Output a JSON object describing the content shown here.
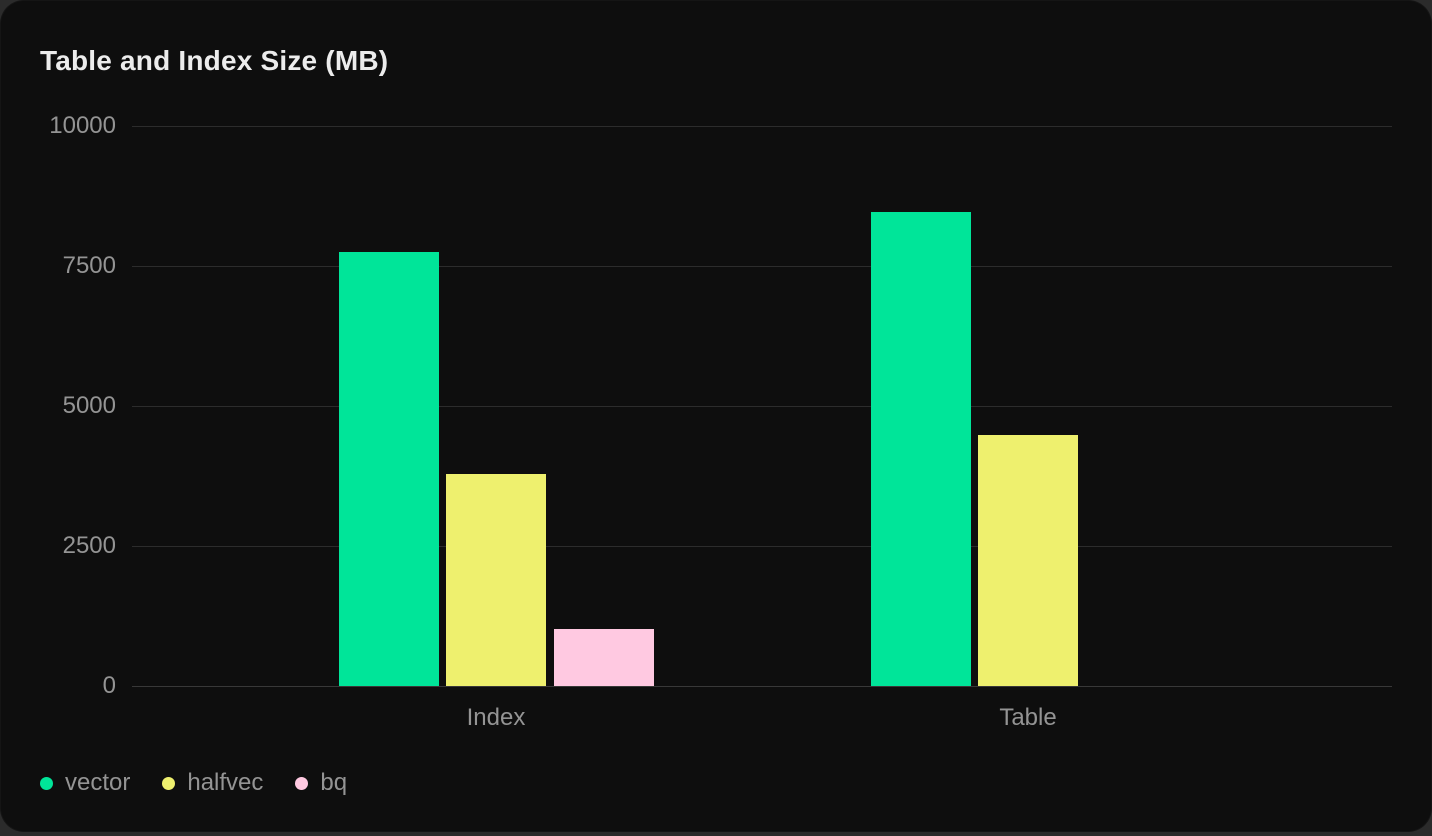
{
  "header": {
    "title": "Table and Index Size (MB)"
  },
  "chart_data": {
    "type": "bar",
    "title": "Table and Index Size (MB)",
    "categories": [
      "Index",
      "Table"
    ],
    "series": [
      {
        "name": "vector",
        "color": "#00e599",
        "values": [
          7750,
          8460
        ]
      },
      {
        "name": "halfvec",
        "color": "#eef06e",
        "values": [
          3790,
          4480
        ]
      },
      {
        "name": "bq",
        "color": "#ffc9e1",
        "values": [
          1020,
          null
        ]
      }
    ],
    "xlabel": "",
    "ylabel": "",
    "ylim": [
      0,
      10000
    ],
    "yticks": [
      0,
      2500,
      5000,
      7500,
      10000
    ],
    "grid": true,
    "legend_position": "bottom-left"
  },
  "theme": {
    "page_bg": "#2b2b2b",
    "card_bg": "#0e0e0e",
    "grid_color": "#2c2c2c",
    "zero_line_color": "#383838",
    "title_color": "#ececec",
    "text_muted": "#949494"
  }
}
